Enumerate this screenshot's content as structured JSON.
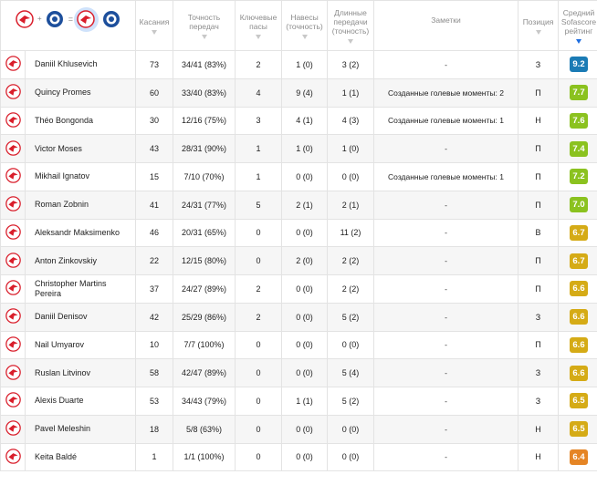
{
  "columns": {
    "touches": "Касания",
    "pass_accuracy": "Точность передач",
    "key_passes": "Ключевые пасы",
    "crosses": "Навесы (точность)",
    "long_balls": "Длинные передачи (точность)",
    "notes": "Заметки",
    "position": "Позиция",
    "rating": "Средний Sofascore рейтинг"
  },
  "header_icons": [
    "spartak-logo-icon",
    "plus-icon",
    "opponent-logo-icon",
    "equals-icon",
    "spartak-logo-icon-selected",
    "opponent-logo-icon"
  ],
  "colors": {
    "rating_blue": "#1b7bb5",
    "rating_green": "#8bc21f",
    "rating_yellow_green": "#c5c41b",
    "rating_yellow": "#d5ab16",
    "rating_orange": "#e58525",
    "spartak_red": "#d91e2b",
    "opponent_blue": "#1d4f9c"
  },
  "rows": [
    {
      "name": "Daniil Khlusevich",
      "touches": "73",
      "pass_accuracy": "34/41 (83%)",
      "key_passes": "2",
      "crosses": "1 (0)",
      "long_balls": "3 (2)",
      "notes": "-",
      "position": "З",
      "rating": "9.2",
      "rating_color": "#1b7bb5"
    },
    {
      "name": "Quincy Promes",
      "touches": "60",
      "pass_accuracy": "33/40 (83%)",
      "key_passes": "4",
      "crosses": "9 (4)",
      "long_balls": "1 (1)",
      "notes": "Созданные голевые моменты: 2",
      "position": "П",
      "rating": "7.7",
      "rating_color": "#8bc21f"
    },
    {
      "name": "Théo Bongonda",
      "touches": "30",
      "pass_accuracy": "12/16 (75%)",
      "key_passes": "3",
      "crosses": "4 (1)",
      "long_balls": "4 (3)",
      "notes": "Созданные голевые моменты: 1",
      "position": "Н",
      "rating": "7.6",
      "rating_color": "#8bc21f"
    },
    {
      "name": "Victor Moses",
      "touches": "43",
      "pass_accuracy": "28/31 (90%)",
      "key_passes": "1",
      "crosses": "1 (0)",
      "long_balls": "1 (0)",
      "notes": "-",
      "position": "П",
      "rating": "7.4",
      "rating_color": "#8bc21f"
    },
    {
      "name": "Mikhail Ignatov",
      "touches": "15",
      "pass_accuracy": "7/10 (70%)",
      "key_passes": "1",
      "crosses": "0 (0)",
      "long_balls": "0 (0)",
      "notes": "Созданные голевые моменты: 1",
      "position": "П",
      "rating": "7.2",
      "rating_color": "#8bc21f"
    },
    {
      "name": "Roman Zobnin",
      "touches": "41",
      "pass_accuracy": "24/31 (77%)",
      "key_passes": "5",
      "crosses": "2 (1)",
      "long_balls": "2 (1)",
      "notes": "-",
      "position": "П",
      "rating": "7.0",
      "rating_color": "#8bc21f"
    },
    {
      "name": "Aleksandr Maksimenko",
      "touches": "46",
      "pass_accuracy": "20/31 (65%)",
      "key_passes": "0",
      "crosses": "0 (0)",
      "long_balls": "11 (2)",
      "notes": "-",
      "position": "В",
      "rating": "6.7",
      "rating_color": "#d5ab16"
    },
    {
      "name": "Anton Zinkovskiy",
      "touches": "22",
      "pass_accuracy": "12/15 (80%)",
      "key_passes": "0",
      "crosses": "2 (0)",
      "long_balls": "2 (2)",
      "notes": "-",
      "position": "П",
      "rating": "6.7",
      "rating_color": "#d5ab16"
    },
    {
      "name": "Christopher Martins Pereira",
      "touches": "37",
      "pass_accuracy": "24/27 (89%)",
      "key_passes": "2",
      "crosses": "0 (0)",
      "long_balls": "2 (2)",
      "notes": "-",
      "position": "П",
      "rating": "6.6",
      "rating_color": "#d5ab16"
    },
    {
      "name": "Daniil Denisov",
      "touches": "42",
      "pass_accuracy": "25/29 (86%)",
      "key_passes": "2",
      "crosses": "0 (0)",
      "long_balls": "5 (2)",
      "notes": "-",
      "position": "З",
      "rating": "6.6",
      "rating_color": "#d5ab16"
    },
    {
      "name": "Nail Umyarov",
      "touches": "10",
      "pass_accuracy": "7/7 (100%)",
      "key_passes": "0",
      "crosses": "0 (0)",
      "long_balls": "0 (0)",
      "notes": "-",
      "position": "П",
      "rating": "6.6",
      "rating_color": "#d5ab16"
    },
    {
      "name": "Ruslan Litvinov",
      "touches": "58",
      "pass_accuracy": "42/47 (89%)",
      "key_passes": "0",
      "crosses": "0 (0)",
      "long_balls": "5 (4)",
      "notes": "-",
      "position": "З",
      "rating": "6.6",
      "rating_color": "#d5ab16"
    },
    {
      "name": "Alexis Duarte",
      "touches": "53",
      "pass_accuracy": "34/43 (79%)",
      "key_passes": "0",
      "crosses": "1 (1)",
      "long_balls": "5 (2)",
      "notes": "-",
      "position": "З",
      "rating": "6.5",
      "rating_color": "#d5ab16"
    },
    {
      "name": "Pavel Meleshin",
      "touches": "18",
      "pass_accuracy": "5/8 (63%)",
      "key_passes": "0",
      "crosses": "0 (0)",
      "long_balls": "0 (0)",
      "notes": "-",
      "position": "Н",
      "rating": "6.5",
      "rating_color": "#d5ab16"
    },
    {
      "name": "Keita Baldé",
      "touches": "1",
      "pass_accuracy": "1/1 (100%)",
      "key_passes": "0",
      "crosses": "0 (0)",
      "long_balls": "0 (0)",
      "notes": "-",
      "position": "Н",
      "rating": "6.4",
      "rating_color": "#e58525"
    }
  ]
}
